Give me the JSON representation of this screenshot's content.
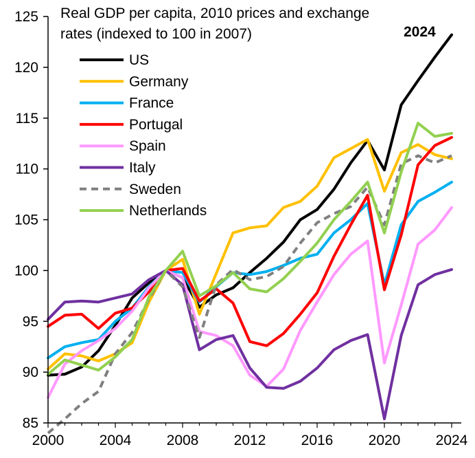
{
  "chart_data": {
    "type": "line",
    "title": [
      "Real GDP per capita, 2010 prices and exchange",
      "rates (indexed to 100 in 2007)"
    ],
    "xlabel": "",
    "ylabel": "",
    "xlim": [
      2000,
      2024
    ],
    "ylim": [
      85,
      125
    ],
    "x_ticks": [
      2000,
      2004,
      2008,
      2012,
      2016,
      2020,
      2024
    ],
    "y_ticks": [
      85,
      90,
      95,
      100,
      105,
      110,
      115,
      120,
      125
    ],
    "annotation": {
      "text": "2024",
      "x": 2024,
      "y": 123.2
    },
    "x": [
      2000,
      2001,
      2002,
      2003,
      2004,
      2005,
      2006,
      2007,
      2008,
      2009,
      2010,
      2011,
      2012,
      2013,
      2014,
      2015,
      2016,
      2017,
      2018,
      2019,
      2020,
      2021,
      2022,
      2023,
      2024
    ],
    "series": [
      {
        "name": "US",
        "color": "#000000",
        "dash": false,
        "values": [
          89.7,
          89.8,
          90.5,
          92.1,
          94.6,
          97.3,
          98.8,
          100.0,
          99.3,
          96.4,
          97.6,
          98.3,
          99.8,
          101.2,
          102.8,
          105.0,
          106.0,
          108.0,
          110.6,
          112.8,
          109.9,
          116.3,
          118.7,
          121.0,
          123.2
        ]
      },
      {
        "name": "Germany",
        "color": "#FFC000",
        "dash": false,
        "values": [
          90.3,
          91.8,
          91.6,
          91.1,
          91.8,
          92.9,
          96.9,
          100.0,
          101.1,
          95.7,
          99.7,
          103.7,
          104.2,
          104.4,
          106.2,
          106.8,
          108.3,
          111.1,
          112.0,
          112.9,
          107.8,
          111.6,
          112.4,
          111.4,
          111.0
        ]
      },
      {
        "name": "France",
        "color": "#00B0F0",
        "dash": false,
        "values": [
          91.4,
          92.5,
          92.9,
          93.2,
          95.0,
          96.3,
          98.4,
          100.0,
          99.8,
          96.9,
          98.4,
          99.8,
          99.6,
          99.9,
          100.5,
          101.2,
          101.6,
          103.7,
          105.0,
          106.6,
          98.6,
          104.5,
          106.8,
          107.7,
          108.7
        ]
      },
      {
        "name": "Portugal",
        "color": "#FF0000",
        "dash": false,
        "values": [
          94.5,
          95.6,
          95.7,
          94.3,
          95.8,
          96.3,
          97.9,
          100.0,
          100.2,
          97.0,
          98.2,
          96.8,
          93.0,
          92.6,
          93.8,
          95.7,
          97.8,
          101.4,
          104.5,
          107.4,
          98.1,
          103.5,
          110.4,
          112.3,
          113.1
        ]
      },
      {
        "name": "Spain",
        "color": "#FF99FF",
        "dash": false,
        "values": [
          87.5,
          90.8,
          92.1,
          93.1,
          94.3,
          96.0,
          98.3,
          100.0,
          99.3,
          94.0,
          93.6,
          92.6,
          89.7,
          88.6,
          90.3,
          94.1,
          96.9,
          99.6,
          101.6,
          102.9,
          90.9,
          96.6,
          102.6,
          104.0,
          106.2
        ]
      },
      {
        "name": "Italy",
        "color": "#7030A0",
        "dash": false,
        "values": [
          95.2,
          96.9,
          97.0,
          96.9,
          97.3,
          97.7,
          99.1,
          100.0,
          98.6,
          92.2,
          93.2,
          93.6,
          90.4,
          88.5,
          88.4,
          89.1,
          90.4,
          92.2,
          93.1,
          93.7,
          85.4,
          93.6,
          98.6,
          99.6,
          100.1
        ]
      },
      {
        "name": "Sweden",
        "color": "#808080",
        "dash": true,
        "values": [
          84.0,
          85.4,
          86.9,
          88.1,
          91.8,
          93.9,
          97.2,
          100.0,
          98.4,
          93.4,
          98.6,
          100.1,
          99.1,
          99.4,
          100.4,
          102.7,
          104.7,
          105.6,
          106.3,
          108.2,
          104.5,
          110.5,
          111.3,
          110.6,
          111.3
        ]
      },
      {
        "name": "Netherlands",
        "color": "#92D050",
        "dash": false,
        "values": [
          89.8,
          91.2,
          90.7,
          90.2,
          91.5,
          93.2,
          97.4,
          100.0,
          101.9,
          97.5,
          98.5,
          99.8,
          98.2,
          97.9,
          99.2,
          100.9,
          102.7,
          105.0,
          106.8,
          108.7,
          103.7,
          109.7,
          114.5,
          113.2,
          113.5
        ]
      }
    ]
  }
}
